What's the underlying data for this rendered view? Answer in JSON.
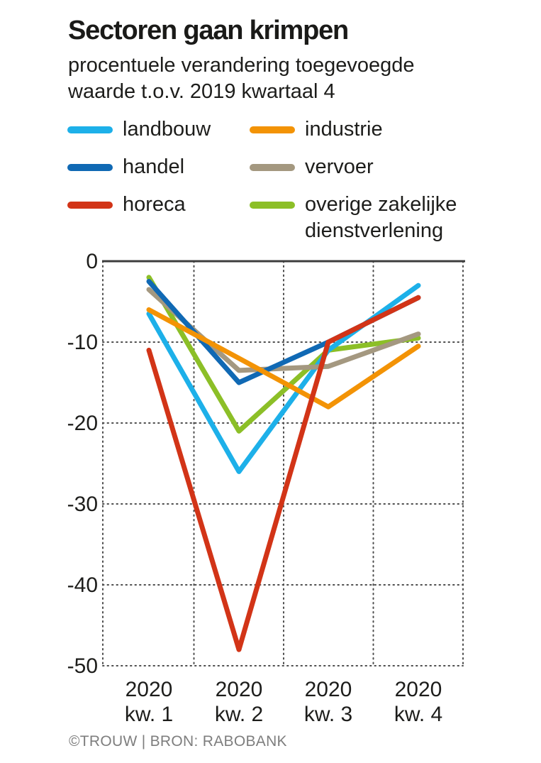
{
  "header": {
    "title": "Sectoren gaan krimpen",
    "subtitle_line1": "procentuele verandering toegevoegde",
    "subtitle_line2": "waarde t.o.v. 2019 kwartaal 4"
  },
  "footer": {
    "credit": "©TROUW | BRON: RABOBANK"
  },
  "colors": {
    "axis_text": "#1d1d1b",
    "grid_dots": "#4d4d4d",
    "zero_line": "#3d3d3d"
  },
  "chart_data": {
    "type": "line",
    "title": "Sectoren gaan krimpen",
    "subtitle": "procentuele verandering toegevoegde waarde t.o.v. 2019 kwartaal 4",
    "categories": [
      [
        "2020",
        "kw. 1"
      ],
      [
        "2020",
        "kw. 2"
      ],
      [
        "2020",
        "kw. 3"
      ],
      [
        "2020",
        "kw. 4"
      ]
    ],
    "series": [
      {
        "name": "landbouw",
        "color": "#1db0e9",
        "values": [
          -6.5,
          -26,
          -11,
          -3
        ]
      },
      {
        "name": "handel",
        "color": "#1069b4",
        "values": [
          -2.5,
          -15,
          -10,
          -4.5
        ]
      },
      {
        "name": "horeca",
        "color": "#d23417",
        "values": [
          -11,
          -48,
          -10,
          -4.5
        ]
      },
      {
        "name": "industrie",
        "color": "#f39305",
        "values": [
          -6,
          -12,
          -18,
          -10.5
        ]
      },
      {
        "name": "vervoer",
        "color": "#a49880",
        "values": [
          -3.5,
          -13.5,
          -13,
          -9
        ]
      },
      {
        "name": "overige zakelijke dienstverlening",
        "color": "#8cbf27",
        "values": [
          -2,
          -21,
          -11,
          -9.5
        ]
      }
    ],
    "draw_order": [
      "overige zakelijke dienstverlening",
      "landbouw",
      "vervoer",
      "handel",
      "industrie",
      "horeca"
    ],
    "ylim": [
      -50,
      0
    ],
    "yticks": [
      0,
      -10,
      -20,
      -30,
      -40,
      -50
    ],
    "ytick_labels": [
      "0",
      "-10",
      "-20",
      "-30",
      "-40",
      "-50"
    ],
    "grid": "dotted",
    "legend_position": "top"
  }
}
